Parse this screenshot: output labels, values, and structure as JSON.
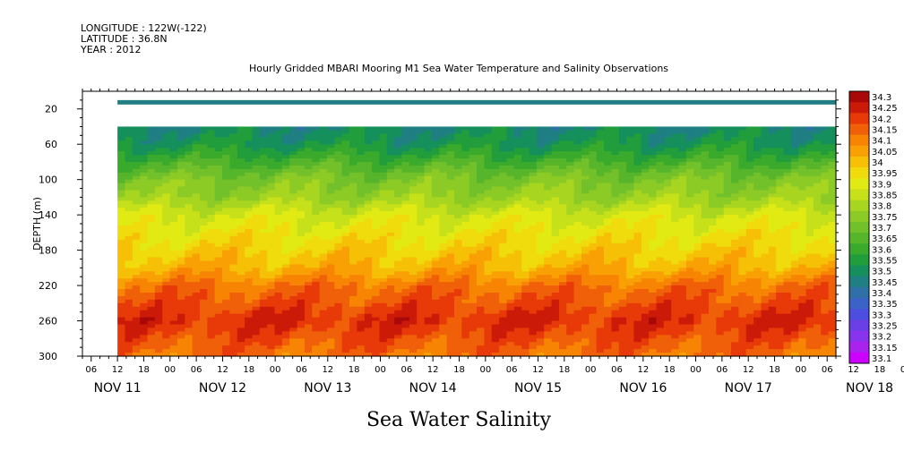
{
  "header": {
    "longitude": "LONGITUDE : 122W(-122)",
    "latitude": "LATITUDE : 36.8N",
    "year": "YEAR : 2012",
    "title": "Hourly Gridded MBARI Mooring M1 Sea Water Temperature and Salinity Observations"
  },
  "footer": {
    "variable_title": "Sea Water Salinity"
  },
  "chart_data": {
    "type": "heatmap",
    "title": "Hourly Gridded MBARI Mooring M1 Sea Water Temperature and Salinity Observations",
    "variable": "Sea Water Salinity",
    "xlabel": "",
    "ylabel": "DEPTH (m)",
    "x_range": [
      "2012-11-11T04:00",
      "2012-11-18T08:00"
    ],
    "x_data_start": "2012-11-11T12:00",
    "y_range": [
      0,
      300
    ],
    "y_reversed": true,
    "y_ticks": [
      20,
      60,
      100,
      140,
      180,
      220,
      260,
      300
    ],
    "x_hour_labels": [
      "06",
      "12",
      "18",
      "00",
      "06",
      "12",
      "18",
      "00",
      "06",
      "12",
      "18",
      "00",
      "06",
      "12",
      "18",
      "00",
      "06",
      "12",
      "18",
      "00",
      "06",
      "12",
      "18",
      "00",
      "06",
      "12",
      "18",
      "00",
      "06",
      "12",
      "18",
      "00",
      "06"
    ],
    "x_date_labels": [
      "NOV 11",
      "NOV 12",
      "NOV 13",
      "NOV 14",
      "NOV 15",
      "NOV 16",
      "NOV 17",
      "NOV 18"
    ],
    "surface_layer": {
      "depth_range": [
        10,
        15
      ],
      "salinity": 33.45
    },
    "no_data_depth_range": [
      15,
      40
    ],
    "depth_profile": {
      "depth": [
        40,
        60,
        80,
        100,
        120,
        140,
        160,
        180,
        200,
        220,
        240,
        260,
        280,
        300
      ],
      "salinity": [
        33.5,
        33.55,
        33.65,
        33.75,
        33.8,
        33.9,
        33.95,
        34.0,
        34.05,
        34.15,
        34.2,
        34.25,
        34.2,
        34.15
      ]
    },
    "colorbar": {
      "levels": [
        33.1,
        33.15,
        33.2,
        33.25,
        33.3,
        33.35,
        33.4,
        33.45,
        33.5,
        33.55,
        33.6,
        33.65,
        33.7,
        33.75,
        33.8,
        33.85,
        33.9,
        33.95,
        34.0,
        34.05,
        34.1,
        34.15,
        34.2,
        34.25,
        34.3
      ],
      "labels": [
        "33.1",
        "33.15",
        "33.2",
        "33.25",
        "33.3",
        "33.35",
        "33.4",
        "33.45",
        "33.5",
        "33.55",
        "33.6",
        "33.65",
        "33.7",
        "33.75",
        "33.8",
        "33.85",
        "33.9",
        "33.95",
        "34",
        "34.05",
        "34.1",
        "34.15",
        "34.2",
        "34.25",
        "34.3"
      ],
      "colors": [
        "#cc00ff",
        "#aa22ee",
        "#8833ee",
        "#6a3fe6",
        "#4b4ede",
        "#3b62c6",
        "#2f70a6",
        "#1f7f82",
        "#15905c",
        "#229d3c",
        "#3aaa2c",
        "#56b52a",
        "#72c02a",
        "#8ccb26",
        "#a8d620",
        "#c6e01a",
        "#e2ea14",
        "#f0dc0c",
        "#f6c006",
        "#f8a004",
        "#f88404",
        "#f06008",
        "#e83a08",
        "#cc1a08",
        "#a80808"
      ]
    }
  }
}
